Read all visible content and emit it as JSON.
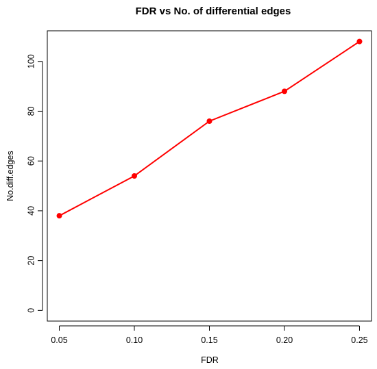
{
  "chart_data": {
    "type": "line",
    "title": "FDR vs No. of differential edges",
    "xlabel": "FDR",
    "ylabel": "No.diff.edges",
    "x": [
      0.05,
      0.1,
      0.15,
      0.2,
      0.25
    ],
    "x_tick_labels": [
      "0.05",
      "0.10",
      "0.15",
      "0.20",
      "0.25"
    ],
    "y_ticks": [
      0,
      20,
      40,
      60,
      80,
      100
    ],
    "y_tick_labels": [
      "0",
      "20",
      "40",
      "60",
      "80",
      "100"
    ],
    "xlim": [
      0.042,
      0.258
    ],
    "ylim": [
      -4.3,
      112.3
    ],
    "series": [
      {
        "values": [
          38,
          54,
          76,
          88,
          108
        ],
        "color": "#ff0000",
        "marker": "filled-circle"
      }
    ],
    "grid": false,
    "legend": "none"
  }
}
